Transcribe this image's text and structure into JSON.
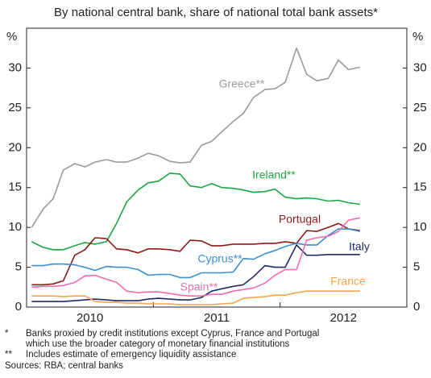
{
  "chart_data": {
    "type": "line",
    "title": "By national central bank, share of national total bank assets*",
    "y_unit_left": "%",
    "y_unit_right": "%",
    "xlim": [
      2010,
      2013
    ],
    "xticks": [
      2010,
      2011,
      2012,
      2013
    ],
    "x_labels": [
      {
        "value": 2010.5,
        "label": "2010"
      },
      {
        "value": 2011.5,
        "label": "2011"
      },
      {
        "value": 2012.5,
        "label": "2012"
      }
    ],
    "ylim": [
      0,
      35
    ],
    "yticks": [
      0,
      5,
      10,
      15,
      20,
      25,
      30
    ],
    "x": [
      2010.04,
      2010.13,
      2010.21,
      2010.29,
      2010.38,
      2010.46,
      2010.54,
      2010.63,
      2010.71,
      2010.79,
      2010.88,
      2010.96,
      2011.04,
      2011.13,
      2011.21,
      2011.29,
      2011.38,
      2011.46,
      2011.54,
      2011.63,
      2011.71,
      2011.79,
      2011.88,
      2011.96,
      2012.04,
      2012.13,
      2012.21,
      2012.29,
      2012.38,
      2012.46,
      2012.54,
      2012.63
    ],
    "series": [
      {
        "name": "Greece**",
        "color": "#9a9a9a",
        "values": [
          10,
          12.3,
          13.6,
          17.2,
          18,
          17.6,
          18.2,
          18.5,
          18.2,
          18.2,
          18.7,
          19.3,
          19,
          18.3,
          18.1,
          18.2,
          20.3,
          20.8,
          22,
          23.3,
          24.3,
          26.3,
          27.3,
          27.4,
          28.2,
          32.5,
          29.2,
          28.4,
          28.7,
          31,
          29.8,
          30.1
        ]
      },
      {
        "name": "Ireland**",
        "color": "#1fa540",
        "values": [
          8.2,
          7.5,
          7.2,
          7.2,
          7.7,
          8.1,
          7.9,
          8.2,
          10.5,
          13.2,
          14.7,
          15.6,
          15.8,
          16.8,
          16.7,
          15.2,
          15,
          15.5,
          15,
          14.9,
          14.7,
          14.4,
          14.5,
          14.8,
          13.8,
          13.6,
          13.7,
          13.6,
          13.3,
          13.4,
          13.1,
          12.9
        ]
      },
      {
        "name": "Portugal",
        "color": "#8b1a1a",
        "values": [
          2.8,
          2.8,
          2.9,
          3.3,
          6.5,
          7.2,
          8.7,
          8.6,
          7.3,
          7.2,
          6.8,
          7.3,
          7.3,
          7.2,
          7,
          8.4,
          8.3,
          7.7,
          7.7,
          7.9,
          7.9,
          7.9,
          8,
          8,
          8.2,
          8,
          9.6,
          9.5,
          10,
          10.5,
          9.8,
          9.6
        ]
      },
      {
        "name": "Italy",
        "color": "#1f2a6b",
        "values": [
          0.7,
          0.7,
          0.7,
          0.7,
          0.8,
          0.9,
          1,
          0.9,
          0.8,
          0.8,
          0.8,
          1,
          1.1,
          1,
          0.9,
          0.9,
          1.2,
          2,
          2.3,
          2.6,
          2.8,
          3.8,
          5.2,
          5,
          5,
          7.8,
          6.5,
          6.5,
          6.6,
          6.6,
          6.6,
          6.6
        ]
      },
      {
        "name": "Cyprus**",
        "color": "#3a8fcf",
        "values": [
          5.2,
          5.2,
          5.4,
          5.4,
          5.3,
          5,
          4.6,
          5.1,
          5,
          5,
          4.7,
          4,
          4.1,
          4.1,
          3.7,
          3.7,
          4.3,
          4.3,
          4.3,
          4.4,
          6.1,
          6,
          6.7,
          7.1,
          7.6,
          8,
          7.8,
          7.8,
          9,
          9.8,
          9.8,
          9.5
        ]
      },
      {
        "name": "Spain**",
        "color": "#ee6eaa",
        "values": [
          2.5,
          2.6,
          2.6,
          2.7,
          3.1,
          3.9,
          4,
          3.5,
          3.1,
          2,
          1.8,
          1.9,
          1.9,
          1.7,
          1.5,
          1.4,
          1.4,
          1.6,
          1.6,
          2,
          2.2,
          2.4,
          3,
          4,
          4.7,
          4.7,
          8.4,
          8.7,
          8.9,
          9.5,
          10.9,
          11.2
        ]
      },
      {
        "name": "France",
        "color": "#f5a44a",
        "values": [
          1.4,
          1.4,
          1.4,
          1.3,
          1.4,
          1.4,
          0.7,
          0.6,
          0.6,
          0.5,
          0.5,
          0.4,
          0.4,
          0.4,
          0.3,
          0.3,
          0.3,
          0.3,
          0.4,
          0.5,
          1.1,
          1.2,
          1.3,
          1.5,
          1.5,
          1.8,
          2,
          2,
          2,
          2,
          2,
          2
        ]
      }
    ],
    "footnotes": [
      "*",
      "Banks proxied by credit institutions except Cyprus, France and Portugal",
      "which use the broader category of monetary financial institutions",
      "**",
      "Includes estimate of emergency liquidity assistance"
    ],
    "source": "Sources: RBA; central banks"
  }
}
